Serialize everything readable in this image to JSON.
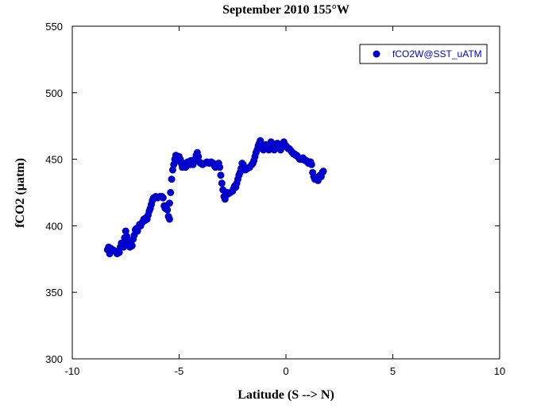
{
  "chart_data": {
    "type": "scatter",
    "title": "September 2010 155°W",
    "xlabel": "Latitude (S --> N)",
    "ylabel": "fCO2 (µatm)",
    "xlim": [
      -10,
      10
    ],
    "ylim": [
      300,
      550
    ],
    "xticks": [
      -10,
      -5,
      0,
      5,
      10
    ],
    "yticks": [
      300,
      350,
      400,
      450,
      500,
      550
    ],
    "legend": {
      "placement": "top-right",
      "label": "fCO2W@SST_uATM"
    },
    "grid": false,
    "marker_color": "#0000cc",
    "series": [
      {
        "name": "fCO2W@SST_uATM",
        "points": [
          [
            -8.35,
            382
          ],
          [
            -8.3,
            384
          ],
          [
            -8.25,
            379
          ],
          [
            -8.2,
            383
          ],
          [
            -8.1,
            382
          ],
          [
            -8.0,
            381
          ],
          [
            -7.9,
            379
          ],
          [
            -7.8,
            380
          ],
          [
            -7.75,
            384
          ],
          [
            -7.7,
            387
          ],
          [
            -7.6,
            384
          ],
          [
            -7.55,
            391
          ],
          [
            -7.5,
            396
          ],
          [
            -7.45,
            392
          ],
          [
            -7.4,
            388
          ],
          [
            -7.35,
            386
          ],
          [
            -7.3,
            384
          ],
          [
            -7.25,
            387
          ],
          [
            -7.2,
            385
          ],
          [
            -7.15,
            390
          ],
          [
            -7.1,
            393
          ],
          [
            -7.05,
            397
          ],
          [
            -7.0,
            398
          ],
          [
            -6.95,
            396
          ],
          [
            -6.9,
            399
          ],
          [
            -6.85,
            401
          ],
          [
            -6.8,
            400
          ],
          [
            -6.75,
            402
          ],
          [
            -6.7,
            403
          ],
          [
            -6.65,
            405
          ],
          [
            -6.6,
            404
          ],
          [
            -6.55,
            406
          ],
          [
            -6.5,
            405
          ],
          [
            -6.45,
            408
          ],
          [
            -6.4,
            411
          ],
          [
            -6.35,
            413
          ],
          [
            -6.3,
            416
          ],
          [
            -6.25,
            419
          ],
          [
            -6.2,
            421
          ],
          [
            -6.1,
            422
          ],
          [
            -6.0,
            421
          ],
          [
            -5.9,
            422
          ],
          [
            -5.8,
            422
          ],
          [
            -5.75,
            421
          ],
          [
            -5.7,
            415
          ],
          [
            -5.65,
            413
          ],
          [
            -5.6,
            415
          ],
          [
            -5.55,
            412
          ],
          [
            -5.5,
            407
          ],
          [
            -5.45,
            405
          ],
          [
            -5.45,
            417
          ],
          [
            -5.4,
            425
          ],
          [
            -5.35,
            435
          ],
          [
            -5.3,
            442
          ],
          [
            -5.25,
            446
          ],
          [
            -5.2,
            450
          ],
          [
            -5.15,
            453
          ],
          [
            -5.1,
            451
          ],
          [
            -5.05,
            449
          ],
          [
            -5.0,
            452
          ],
          [
            -4.95,
            450
          ],
          [
            -4.9,
            447
          ],
          [
            -4.85,
            444
          ],
          [
            -4.8,
            447
          ],
          [
            -4.75,
            446
          ],
          [
            -4.7,
            444
          ],
          [
            -4.65,
            446
          ],
          [
            -4.6,
            448
          ],
          [
            -4.55,
            447
          ],
          [
            -4.5,
            446
          ],
          [
            -4.45,
            449
          ],
          [
            -4.4,
            448
          ],
          [
            -4.35,
            446
          ],
          [
            -4.3,
            448
          ],
          [
            -4.25,
            450
          ],
          [
            -4.2,
            453
          ],
          [
            -4.15,
            455
          ],
          [
            -4.1,
            452
          ],
          [
            -4.05,
            448
          ],
          [
            -4.0,
            447
          ],
          [
            -3.9,
            446
          ],
          [
            -3.8,
            447
          ],
          [
            -3.7,
            448
          ],
          [
            -3.6,
            447
          ],
          [
            -3.5,
            448
          ],
          [
            -3.4,
            447
          ],
          [
            -3.35,
            445
          ],
          [
            -3.3,
            444
          ],
          [
            -3.2,
            446
          ],
          [
            -3.15,
            447
          ],
          [
            -3.1,
            444
          ],
          [
            -3.05,
            438
          ],
          [
            -3.0,
            432
          ],
          [
            -2.95,
            427
          ],
          [
            -2.9,
            422
          ],
          [
            -2.85,
            420
          ],
          [
            -2.8,
            423
          ],
          [
            -2.75,
            425
          ],
          [
            -2.7,
            424
          ],
          [
            -2.6,
            425
          ],
          [
            -2.5,
            426
          ],
          [
            -2.45,
            428
          ],
          [
            -2.4,
            430
          ],
          [
            -2.35,
            429
          ],
          [
            -2.3,
            432
          ],
          [
            -2.25,
            435
          ],
          [
            -2.2,
            438
          ],
          [
            -2.15,
            440
          ],
          [
            -2.1,
            443
          ],
          [
            -2.05,
            447
          ],
          [
            -2.0,
            446
          ],
          [
            -1.95,
            444
          ],
          [
            -1.9,
            442
          ],
          [
            -1.8,
            443
          ],
          [
            -1.7,
            444
          ],
          [
            -1.6,
            446
          ],
          [
            -1.55,
            447
          ],
          [
            -1.5,
            449
          ],
          [
            -1.45,
            452
          ],
          [
            -1.4,
            455
          ],
          [
            -1.35,
            457
          ],
          [
            -1.3,
            460
          ],
          [
            -1.25,
            462
          ],
          [
            -1.2,
            464
          ],
          [
            -1.15,
            461
          ],
          [
            -1.1,
            458
          ],
          [
            -1.05,
            457
          ],
          [
            -1.0,
            459
          ],
          [
            -0.95,
            461
          ],
          [
            -0.9,
            460
          ],
          [
            -0.85,
            458
          ],
          [
            -0.8,
            457
          ],
          [
            -0.75,
            460
          ],
          [
            -0.7,
            463
          ],
          [
            -0.65,
            462
          ],
          [
            -0.6,
            459
          ],
          [
            -0.55,
            457
          ],
          [
            -0.5,
            458
          ],
          [
            -0.45,
            460
          ],
          [
            -0.4,
            462
          ],
          [
            -0.35,
            460
          ],
          [
            -0.3,
            458
          ],
          [
            -0.25,
            457
          ],
          [
            -0.2,
            459
          ],
          [
            -0.15,
            461
          ],
          [
            -0.1,
            463
          ],
          [
            -0.05,
            461
          ],
          [
            0.0,
            460
          ],
          [
            0.05,
            459
          ],
          [
            0.1,
            458
          ],
          [
            0.15,
            458
          ],
          [
            0.2,
            457
          ],
          [
            0.25,
            456
          ],
          [
            0.3,
            455
          ],
          [
            0.35,
            454
          ],
          [
            0.4,
            454
          ],
          [
            0.45,
            453
          ],
          [
            0.5,
            453
          ],
          [
            0.55,
            452
          ],
          [
            0.6,
            451
          ],
          [
            0.65,
            450
          ],
          [
            0.7,
            450
          ],
          [
            0.75,
            450
          ],
          [
            0.8,
            451
          ],
          [
            0.85,
            450
          ],
          [
            0.9,
            449
          ],
          [
            0.95,
            449
          ],
          [
            1.0,
            448
          ],
          [
            1.05,
            447
          ],
          [
            1.1,
            448
          ],
          [
            1.15,
            448
          ],
          [
            1.2,
            446
          ],
          [
            1.25,
            440
          ],
          [
            1.3,
            437
          ],
          [
            1.35,
            435
          ],
          [
            1.4,
            435
          ],
          [
            1.45,
            436
          ],
          [
            1.5,
            434
          ],
          [
            1.55,
            437
          ],
          [
            1.6,
            438
          ],
          [
            1.65,
            437
          ],
          [
            1.7,
            440
          ],
          [
            1.75,
            441
          ]
        ]
      }
    ]
  }
}
